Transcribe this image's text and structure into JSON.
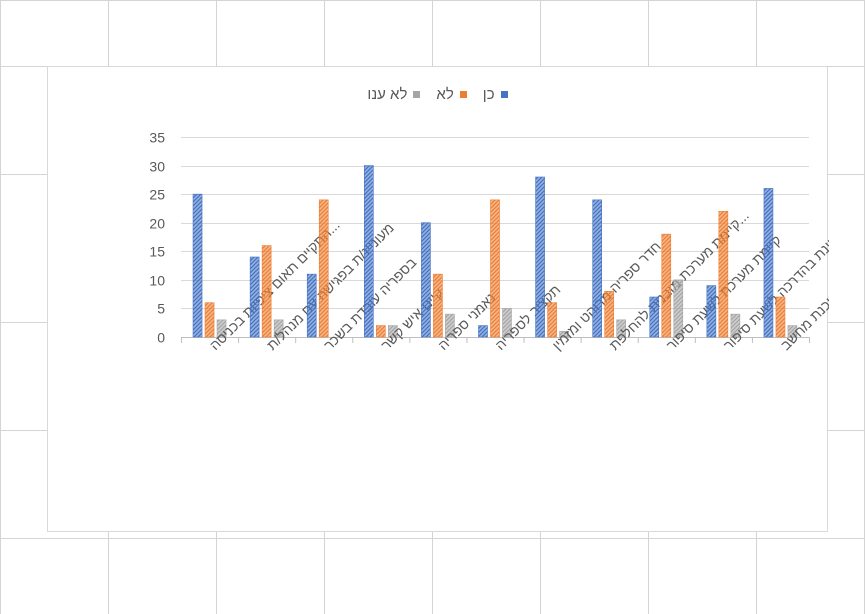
{
  "chart_data": {
    "type": "bar",
    "categories": [
      "התקיים תאום ציפיות בכניסה...",
      "מעוניינ/ת בפגישה עם מנהל/ת",
      "בספריה עובדת בשכר",
      "קיים איש קשר",
      "נאמני ספריה",
      "תקציב לספריה",
      "חדר ספריה מרוהט ומזמין",
      "קיימת מערכת מובנית להחלפת...",
      "קיימת מערכת לשעת סיפור",
      "מעוניינת בהדרכה לשעת סיפור",
      "עובדת עם תוכנת מחשב"
    ],
    "series": [
      {
        "name": "כן",
        "values": [
          25,
          14,
          11,
          30,
          20,
          2,
          28,
          24,
          7,
          9,
          26
        ],
        "color": "#4472c4"
      },
      {
        "name": "לא",
        "values": [
          6,
          16,
          24,
          2,
          11,
          24,
          6,
          8,
          18,
          22,
          7
        ],
        "color": "#ed7d31"
      },
      {
        "name": "לא ענו",
        "values": [
          3,
          3,
          0,
          2,
          4,
          5,
          1,
          3,
          10,
          4,
          2
        ],
        "color": "#a5a5a5"
      }
    ],
    "ylim": [
      0,
      35
    ],
    "yticks": [
      0,
      5,
      10,
      15,
      20,
      25,
      30,
      35
    ],
    "grid": true,
    "legend_position": "top",
    "bar_pattern": "diagonal-hatch"
  }
}
